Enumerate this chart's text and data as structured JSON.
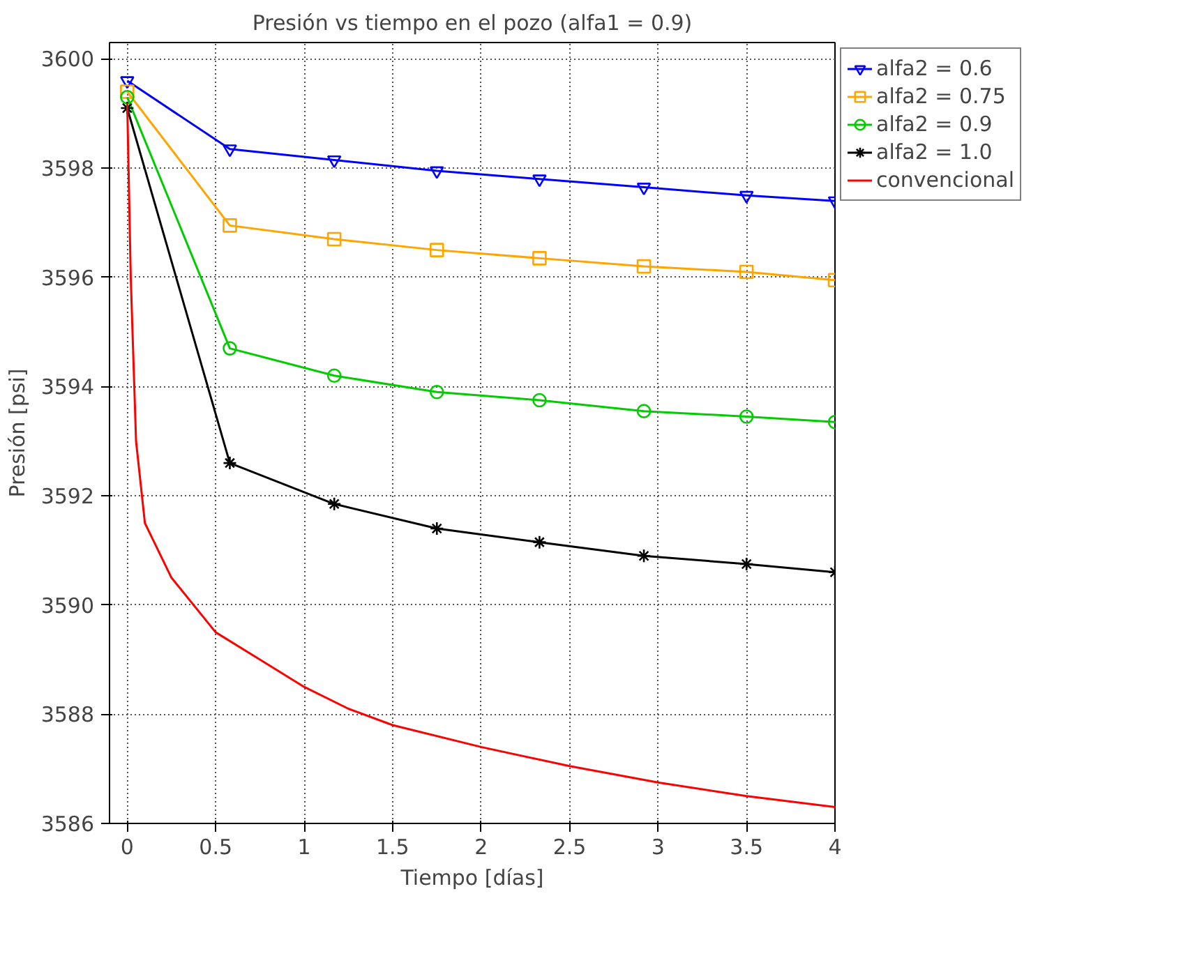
{
  "chart_data": {
    "type": "line",
    "title": "Presión vs tiempo en el pozo (alfa1 = 0.9)",
    "xlabel": "Tiempo [días]",
    "ylabel": "Presión [psi]",
    "xlim": [
      -0.1,
      4
    ],
    "ylim": [
      3586,
      3600.3
    ],
    "xticks": [
      0,
      0.5,
      1,
      1.5,
      2,
      2.5,
      3,
      3.5,
      4
    ],
    "yticks": [
      3586,
      3588,
      3590,
      3592,
      3594,
      3596,
      3598,
      3600
    ],
    "grid": true,
    "legend": "top right",
    "line_style": "solid",
    "series": [
      {
        "name": "alfa2 = 0.6",
        "color": "#0000ff",
        "marker": "triangle",
        "x": [
          0,
          0.58,
          1.17,
          1.75,
          2.33,
          2.92,
          3.5,
          4
        ],
        "values": [
          3599.6,
          3598.35,
          3598.15,
          3597.95,
          3597.8,
          3597.65,
          3597.5,
          3597.4
        ]
      },
      {
        "name": "alfa2 = 0.75",
        "color": "#ffa500",
        "marker": "square",
        "x": [
          0,
          0.58,
          1.17,
          1.75,
          2.33,
          2.92,
          3.5,
          4
        ],
        "values": [
          3599.4,
          3596.95,
          3596.7,
          3596.5,
          3596.35,
          3596.2,
          3596.1,
          3595.95
        ]
      },
      {
        "name": "alfa2 = 0.9",
        "color": "#00cc00",
        "marker": "circle",
        "x": [
          0,
          0.58,
          1.17,
          1.75,
          2.33,
          2.92,
          3.5,
          4
        ],
        "values": [
          3599.3,
          3594.7,
          3594.2,
          3593.9,
          3593.75,
          3593.55,
          3593.45,
          3593.35
        ]
      },
      {
        "name": "alfa2 = 1.0",
        "color": "#000000",
        "marker": "cross",
        "x": [
          0,
          0.58,
          1.17,
          1.75,
          2.33,
          2.92,
          3.5,
          4
        ],
        "values": [
          3599.1,
          3592.6,
          3591.85,
          3591.4,
          3591.15,
          3590.9,
          3590.75,
          3590.6
        ]
      },
      {
        "name": "convencional",
        "color": "#ff0000",
        "marker": "none",
        "x": [
          0,
          0.02,
          0.05,
          0.1,
          0.25,
          0.5,
          0.75,
          1,
          1.25,
          1.5,
          2,
          2.5,
          3,
          3.5,
          4
        ],
        "values": [
          3599.2,
          3596,
          3593,
          3591.5,
          3590.5,
          3589.5,
          3589.0,
          3588.5,
          3588.1,
          3587.8,
          3587.4,
          3587.05,
          3586.75,
          3586.5,
          3586.3
        ]
      }
    ]
  }
}
